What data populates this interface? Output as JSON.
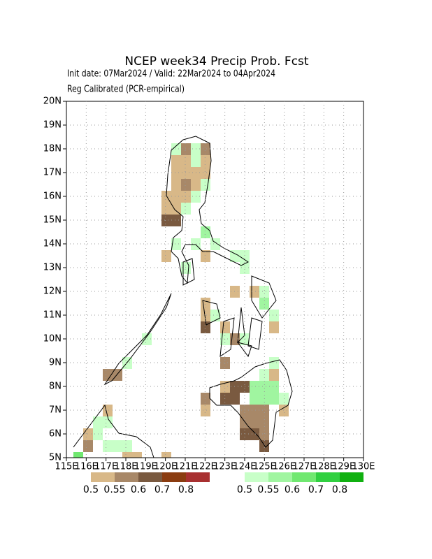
{
  "header": {
    "title": "NCEP week34 Precip Prob. Fcst",
    "line1": "Init date: 07Mar2024 / Valid: 22Mar2024 to 04Apr2024",
    "line2": "Reg Calibrated (PCR-empirical)"
  },
  "map": {
    "xlim": [
      115,
      130
    ],
    "ylim": [
      5,
      20
    ],
    "grid": true,
    "xticks": [
      {
        "value": 115,
        "label": "115E"
      },
      {
        "value": 116,
        "label": "116E"
      },
      {
        "value": 117,
        "label": "117E"
      },
      {
        "value": 118,
        "label": "118E"
      },
      {
        "value": 119,
        "label": "119E"
      },
      {
        "value": 120,
        "label": "120E"
      },
      {
        "value": 121,
        "label": "121E"
      },
      {
        "value": 122,
        "label": "122E"
      },
      {
        "value": 123,
        "label": "123E"
      },
      {
        "value": 124,
        "label": "124E"
      },
      {
        "value": 125,
        "label": "125E"
      },
      {
        "value": 126,
        "label": "126E"
      },
      {
        "value": 127,
        "label": "127E"
      },
      {
        "value": 128,
        "label": "128E"
      },
      {
        "value": 129,
        "label": "129E"
      },
      {
        "value": 130,
        "label": "130E"
      }
    ],
    "yticks": [
      {
        "value": 5,
        "label": "5N"
      },
      {
        "value": 6,
        "label": "6N"
      },
      {
        "value": 7,
        "label": "7N"
      },
      {
        "value": 8,
        "label": "8N"
      },
      {
        "value": 9,
        "label": "9N"
      },
      {
        "value": 10,
        "label": "10N"
      },
      {
        "value": 11,
        "label": "11N"
      },
      {
        "value": 12,
        "label": "12N"
      },
      {
        "value": 13,
        "label": "13N"
      },
      {
        "value": 14,
        "label": "14N"
      },
      {
        "value": 15,
        "label": "15N"
      },
      {
        "value": 16,
        "label": "16N"
      },
      {
        "value": 17,
        "label": "17N"
      },
      {
        "value": 18,
        "label": "18N"
      },
      {
        "value": 19,
        "label": "19N"
      },
      {
        "value": 20,
        "label": "20N"
      }
    ]
  },
  "legend": {
    "below": {
      "colors": [
        "#d8b888",
        "#a88868",
        "#7a5a40",
        "#8b3c10",
        "#a83030"
      ],
      "levels": [
        0.5,
        0.55,
        0.6,
        0.7,
        0.8
      ]
    },
    "above": {
      "colors": [
        "#c8ffc8",
        "#a0f5a0",
        "#70e870",
        "#30d040",
        "#10b010"
      ],
      "levels": [
        0.5,
        0.55,
        0.6,
        0.7,
        0.8
      ]
    }
  }
}
